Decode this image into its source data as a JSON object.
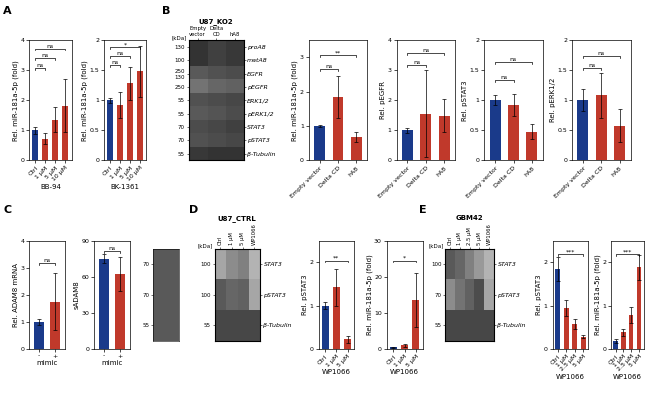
{
  "chart_data": [
    {
      "type": "bar",
      "panel": "A",
      "xlabel": "BB-94",
      "ylabel": "Rel. miR-181a-5p (fold)",
      "categories": [
        "Ctrl",
        "1 μM",
        "5 μM",
        "10 μM"
      ],
      "values": [
        1.0,
        0.72,
        1.35,
        1.82
      ],
      "errors": [
        0.12,
        0.18,
        0.42,
        0.88
      ],
      "colors": [
        "#1a3a8a",
        "#c0392b",
        "#c0392b",
        "#c0392b"
      ],
      "ylim": [
        0,
        4.0
      ],
      "yticks": [
        0,
        1,
        2,
        3,
        4
      ],
      "annotations": [
        {
          "x1": 0,
          "x2": 1,
          "y": 3.0,
          "text": "ns"
        },
        {
          "x1": 0,
          "x2": 2,
          "y": 3.33,
          "text": "ns"
        },
        {
          "x1": 0,
          "x2": 3,
          "y": 3.66,
          "text": "ns"
        }
      ]
    },
    {
      "type": "bar",
      "xlabel": "BK-1361",
      "ylabel": "Rel. miR-181a-5p (fold)",
      "categories": [
        "Ctrl",
        "1 μM",
        "5 μM",
        "10 μM"
      ],
      "values": [
        1.0,
        0.92,
        1.28,
        1.48
      ],
      "errors": [
        0.04,
        0.22,
        0.28,
        0.42
      ],
      "colors": [
        "#1a3a8a",
        "#c0392b",
        "#c0392b",
        "#c0392b"
      ],
      "ylim": [
        0,
        2.0
      ],
      "yticks": [
        0,
        0.5,
        1,
        1.5,
        2
      ],
      "annotations": [
        {
          "x1": 0,
          "x2": 1,
          "y": 1.55,
          "text": "ns"
        },
        {
          "x1": 0,
          "x2": 2,
          "y": 1.7,
          "text": "ns"
        },
        {
          "x1": 0,
          "x2": 3,
          "y": 1.85,
          "text": "*"
        }
      ]
    },
    {
      "type": "heatmap",
      "panel": "B",
      "title": "U87_KO2",
      "columns": [
        "Empty\nvector",
        "Delta\nCD",
        "hA8"
      ],
      "rows": [
        "proA8",
        "matA8",
        "EGFR",
        "pEGFR",
        "ERK1/2",
        "pERK1/2",
        "STAT3",
        "pSTAT3",
        "β-Tubulin"
      ],
      "row_kda": [
        "130",
        "100",
        "250\n130",
        "250",
        "55",
        "55",
        "70",
        "70",
        "55"
      ],
      "kda_title": "[kDa]",
      "cells": [
        [
          0.2,
          0.25,
          0.22
        ],
        [
          0.2,
          0.25,
          0.22
        ],
        [
          0.35,
          0.32,
          0.3
        ],
        [
          0.45,
          0.4,
          0.38
        ],
        [
          0.32,
          0.3,
          0.28
        ],
        [
          0.35,
          0.33,
          0.3
        ],
        [
          0.3,
          0.28,
          0.25
        ],
        [
          0.32,
          0.3,
          0.28
        ],
        [
          0.22,
          0.2,
          0.2
        ]
      ],
      "cell_range": [
        0,
        1
      ]
    },
    {
      "type": "bar",
      "ylabel": "Rel. miR-181a-5p (fold)",
      "categories": [
        "Empty vector",
        "Delta CD",
        "hA8"
      ],
      "values": [
        1.0,
        1.85,
        0.68
      ],
      "errors": [
        0.04,
        0.62,
        0.14
      ],
      "colors": [
        "#1a3a8a",
        "#c0392b",
        "#c0392b"
      ],
      "ylim": [
        0,
        3.5
      ],
      "yticks": [
        0,
        1,
        2,
        3
      ],
      "annotations": [
        {
          "x1": 0,
          "x2": 1,
          "y": 2.6,
          "text": "ns"
        },
        {
          "x1": 0,
          "x2": 2,
          "y": 3.0,
          "text": "**"
        }
      ]
    },
    {
      "type": "bar",
      "ylabel": "Rel. pEGFR",
      "categories": [
        "Empty vector",
        "Delta CD",
        "hA8"
      ],
      "values": [
        1.0,
        1.55,
        1.48
      ],
      "errors": [
        0.08,
        1.45,
        0.55
      ],
      "colors": [
        "#1a3a8a",
        "#c0392b",
        "#c0392b"
      ],
      "ylim": [
        0,
        4.0
      ],
      "yticks": [
        0,
        1,
        2,
        3,
        4
      ],
      "annotations": [
        {
          "x1": 0,
          "x2": 1,
          "y": 3.1,
          "text": "ns"
        },
        {
          "x1": 0,
          "x2": 2,
          "y": 3.5,
          "text": "ns"
        }
      ]
    },
    {
      "type": "bar",
      "ylabel": "Rel. pSTAT3",
      "categories": [
        "Empty vector",
        "Delta CD",
        "hA8"
      ],
      "values": [
        1.0,
        0.92,
        0.48
      ],
      "errors": [
        0.08,
        0.18,
        0.12
      ],
      "colors": [
        "#1a3a8a",
        "#c0392b",
        "#c0392b"
      ],
      "ylim": [
        0,
        2.0
      ],
      "yticks": [
        0,
        0.5,
        1,
        1.5,
        2
      ],
      "annotations": [
        {
          "x1": 0,
          "x2": 1,
          "y": 1.3,
          "text": "ns"
        },
        {
          "x1": 0,
          "x2": 2,
          "y": 1.6,
          "text": "ns"
        }
      ]
    },
    {
      "type": "bar",
      "ylabel": "Rel. pERK1/2",
      "categories": [
        "Empty vector",
        "Delta CD",
        "hA8"
      ],
      "values": [
        1.0,
        1.08,
        0.58
      ],
      "errors": [
        0.18,
        0.38,
        0.28
      ],
      "colors": [
        "#1a3a8a",
        "#c0392b",
        "#c0392b"
      ],
      "ylim": [
        0,
        2.0
      ],
      "yticks": [
        0,
        0.5,
        1,
        1.5,
        2
      ],
      "annotations": [
        {
          "x1": 0,
          "x2": 1,
          "y": 1.5,
          "text": "ns"
        },
        {
          "x1": 0,
          "x2": 2,
          "y": 1.7,
          "text": "ns"
        }
      ]
    },
    {
      "type": "bar",
      "panel": "C",
      "xlabel": "mimic",
      "ylabel": "Rel. ADAM8 mRNA",
      "categories": [
        "-",
        "+"
      ],
      "values": [
        1.0,
        1.75
      ],
      "errors": [
        0.12,
        1.05
      ],
      "colors": [
        "#1a3a8a",
        "#c0392b"
      ],
      "ylim": [
        0,
        4.0
      ],
      "yticks": [
        0,
        1,
        2,
        3,
        4
      ],
      "annotations": [
        {
          "x1": 0,
          "x2": 1,
          "y": 3.1,
          "text": "ns"
        }
      ]
    },
    {
      "type": "bar",
      "xlabel": "mimic",
      "ylabel": "sADAM8",
      "categories": [
        "-",
        "+"
      ],
      "values": [
        75.0,
        62.0
      ],
      "errors": [
        4.0,
        14.0
      ],
      "colors": [
        "#1a3a8a",
        "#c0392b"
      ],
      "ylim": [
        0,
        90
      ],
      "yticks": [
        0,
        30,
        60,
        90
      ],
      "annotations": [
        {
          "x1": 0,
          "x2": 1,
          "y": 80,
          "text": "ns"
        }
      ]
    },
    {
      "type": "heatmap",
      "row_kda": [
        "70",
        "70",
        "55"
      ],
      "cells": [
        [
          0.35,
          0.35
        ],
        [
          0.35,
          0.35
        ],
        [
          0.35,
          0.35
        ]
      ],
      "cell_range": [
        0,
        1
      ]
    },
    {
      "type": "heatmap",
      "panel": "D",
      "title": "U87_CTRL",
      "columns": [
        "Ctrl",
        "1 μM",
        "5 μM",
        "WP1066"
      ],
      "rows": [
        "STAT3",
        "pSTAT3",
        "β-Tubulin"
      ],
      "row_kda": [
        "100",
        "100",
        "55"
      ],
      "kda_title": "[kDa]",
      "cells": [
        [
          0.65,
          0.55,
          0.5,
          0.7
        ],
        [
          0.35,
          0.4,
          0.38,
          0.65
        ],
        [
          0.28,
          0.28,
          0.28,
          0.28
        ]
      ],
      "cell_range": [
        0,
        1
      ]
    },
    {
      "type": "bar",
      "xlabel": "WP1066",
      "ylabel": "Rel. pSTAT3",
      "categories": [
        "Ctrl",
        "1 μM",
        "5 μM"
      ],
      "values": [
        1.0,
        1.42,
        0.22
      ],
      "errors": [
        0.08,
        0.42,
        0.08
      ],
      "colors": [
        "#1a3a8a",
        "#c0392b",
        "#c0392b"
      ],
      "ylim": [
        0,
        2.5
      ],
      "yticks": [
        0,
        1,
        2
      ],
      "annotations": [
        {
          "x1": 0,
          "x2": 2,
          "y": 2.0,
          "text": "**"
        }
      ]
    },
    {
      "type": "bar",
      "xlabel": "WP1066",
      "ylabel": "Rel. miR-181a-5p (fold)",
      "categories": [
        "Ctrl",
        "1 μM",
        "5 μM"
      ],
      "values": [
        0.45,
        0.95,
        13.5
      ],
      "errors": [
        0.15,
        0.45,
        7.5
      ],
      "colors": [
        "#1a3a8a",
        "#c0392b",
        "#c0392b"
      ],
      "ylim": [
        0,
        30
      ],
      "yticks": [
        0,
        10,
        20,
        30
      ],
      "annotations": [
        {
          "x1": 0,
          "x2": 2,
          "y": 24,
          "text": "*"
        }
      ]
    },
    {
      "type": "heatmap",
      "panel": "E",
      "title": "GBM42",
      "columns": [
        "Ctrl",
        "1 μM",
        "2.5 μM",
        "5 μM",
        "WP1066"
      ],
      "rows": [
        "STAT3",
        "pSTAT3",
        "β-Tubulin"
      ],
      "row_kda": [
        "100",
        "70",
        "55"
      ],
      "kda_title": "[kDa]",
      "cells": [
        [
          0.35,
          0.4,
          0.5,
          0.6,
          0.7
        ],
        [
          0.55,
          0.45,
          0.38,
          0.3,
          0.65
        ],
        [
          0.28,
          0.28,
          0.28,
          0.28,
          0.28
        ]
      ],
      "cell_range": [
        0,
        1
      ]
    },
    {
      "type": "bar",
      "xlabel": "WP1066",
      "ylabel": "Rel. pSTAT3",
      "categories": [
        "Ctrl",
        "1 μM",
        "2.5 μM",
        "5 μM"
      ],
      "values": [
        1.85,
        0.95,
        0.58,
        0.28
      ],
      "errors": [
        0.28,
        0.18,
        0.12,
        0.04
      ],
      "colors": [
        "#1a3a8a",
        "#c0392b",
        "#c0392b",
        "#c0392b"
      ],
      "ylim": [
        0,
        2.5
      ],
      "yticks": [
        0,
        1,
        2
      ],
      "annotations": [
        {
          "x1": 0,
          "x2": 3,
          "y": 2.15,
          "text": "***"
        }
      ]
    },
    {
      "type": "bar",
      "xlabel": "WP1066",
      "ylabel": "Rel. miR-181a-5p (fold)",
      "categories": [
        "Ctrl",
        "1 μM",
        "2.5 μM",
        "5 μM"
      ],
      "values": [
        0.18,
        0.38,
        0.78,
        1.88
      ],
      "errors": [
        0.04,
        0.08,
        0.18,
        0.28
      ],
      "colors": [
        "#1a3a8a",
        "#c0392b",
        "#c0392b",
        "#c0392b"
      ],
      "ylim": [
        0,
        2.5
      ],
      "yticks": [
        0,
        1,
        2
      ],
      "annotations": [
        {
          "x1": 0,
          "x2": 3,
          "y": 2.15,
          "text": "***"
        }
      ]
    }
  ]
}
